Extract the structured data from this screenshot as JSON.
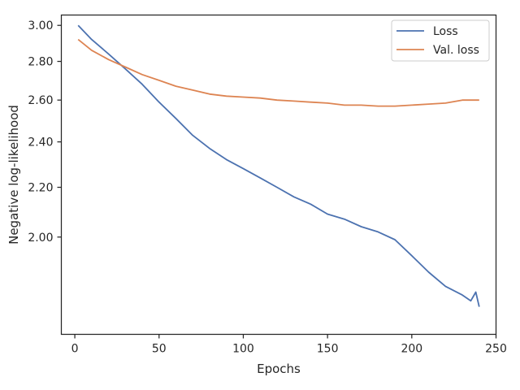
{
  "chart_data": {
    "type": "line",
    "xlabel": "Epochs",
    "ylabel": "Negative log-likelihood",
    "yscale": "log",
    "xlim": [
      -8,
      250
    ],
    "ylim": [
      1.66,
      3.06
    ],
    "xticks": [
      0,
      50,
      100,
      150,
      200,
      250
    ],
    "yticks": [
      2.0,
      2.2,
      2.4,
      2.6,
      2.8,
      3.0
    ],
    "ytick_labels": [
      "2.00",
      "2.20",
      "2.40",
      "2.60",
      "2.80",
      "3.00"
    ],
    "grid": false,
    "legend_position": "top-right",
    "series": [
      {
        "name": "Loss",
        "color": "#4c72b0",
        "x": [
          2,
          10,
          20,
          30,
          40,
          50,
          60,
          70,
          80,
          90,
          100,
          110,
          120,
          130,
          140,
          150,
          160,
          170,
          180,
          190,
          200,
          210,
          220,
          230,
          235,
          238,
          240
        ],
        "y": [
          3.0,
          2.92,
          2.84,
          2.76,
          2.68,
          2.59,
          2.51,
          2.43,
          2.37,
          2.32,
          2.28,
          2.24,
          2.2,
          2.16,
          2.13,
          2.09,
          2.07,
          2.04,
          2.02,
          1.99,
          1.93,
          1.87,
          1.82,
          1.79,
          1.77,
          1.8,
          1.75
        ]
      },
      {
        "name": "Val. loss",
        "color": "#dd8452",
        "x": [
          2,
          10,
          20,
          30,
          40,
          50,
          60,
          70,
          80,
          90,
          100,
          110,
          120,
          130,
          140,
          150,
          160,
          170,
          180,
          190,
          200,
          210,
          220,
          230,
          240
        ],
        "y": [
          2.92,
          2.86,
          2.81,
          2.77,
          2.73,
          2.7,
          2.67,
          2.65,
          2.63,
          2.62,
          2.615,
          2.61,
          2.6,
          2.595,
          2.59,
          2.585,
          2.575,
          2.575,
          2.57,
          2.57,
          2.575,
          2.58,
          2.585,
          2.6,
          2.6
        ]
      }
    ]
  }
}
